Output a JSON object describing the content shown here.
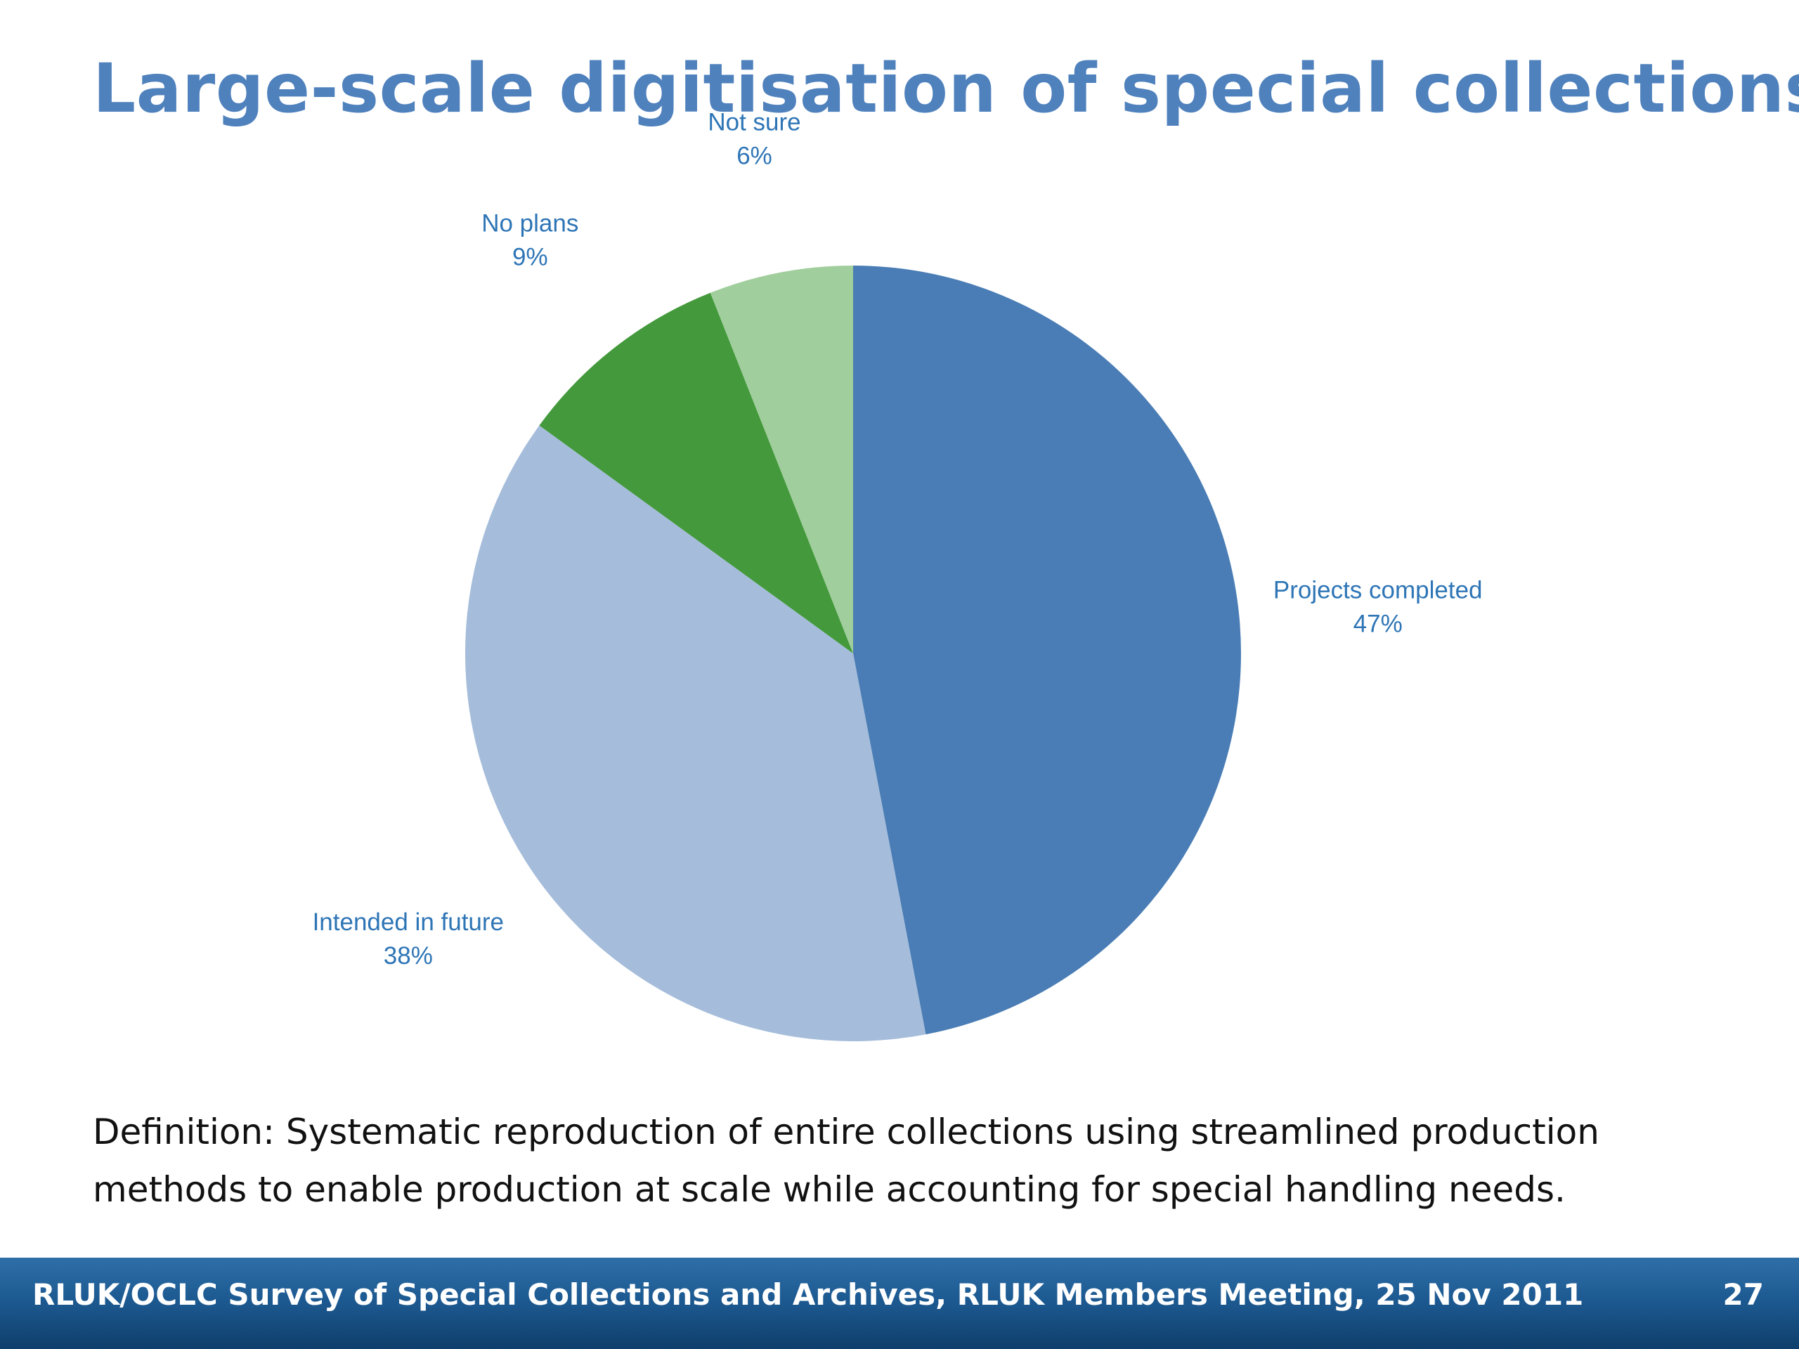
{
  "slide": {
    "title": "Large-scale digitisation of special collections",
    "definition_line1": "Definition: Systematic reproduction of entire collections using streamlined production",
    "definition_line2": "methods to enable production at scale while accounting for special handling needs.",
    "footer": "RLUK/OCLC Survey of Special Collections and Archives, RLUK Members Meeting, 25 Nov 2011",
    "page_number": "27"
  },
  "chart_data": {
    "type": "pie",
    "title": "",
    "start_angle_deg": 0,
    "direction": "clockwise",
    "slices": [
      {
        "name": "Projects completed",
        "value": 47,
        "label": "47%",
        "color": "#4a7db5"
      },
      {
        "name": "Intended in future",
        "value": 38,
        "label": "38%",
        "color": "#a5bddb"
      },
      {
        "name": "No plans",
        "value": 9,
        "label": "9%",
        "color": "#43993b"
      },
      {
        "name": "Not sure",
        "value": 6,
        "label": "6%",
        "color": "#a0ce9c"
      }
    ],
    "label_color": "#2e75b6",
    "legend": "none"
  }
}
